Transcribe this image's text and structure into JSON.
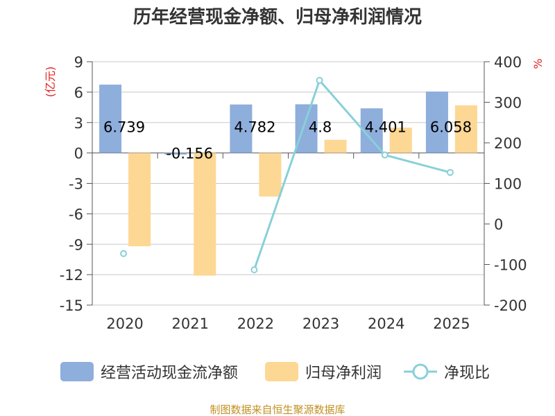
{
  "chart_data": {
    "type": "bar",
    "title": "历年经营现金净额、归母净利润情况",
    "left_unit": "(亿元)",
    "right_unit": "%",
    "categories": [
      "2020",
      "2021",
      "2022",
      "2023",
      "2024",
      "2025"
    ],
    "left_axis": {
      "min": -15,
      "max": 9,
      "ticks": [
        9,
        6,
        3,
        0,
        -3,
        -6,
        -9,
        -12,
        -15
      ]
    },
    "right_axis": {
      "min": -200,
      "max": 400,
      "ticks": [
        400,
        300,
        200,
        100,
        0,
        -100,
        -200
      ]
    },
    "series": [
      {
        "name": "经营活动现金流净额",
        "kind": "bar",
        "axis": "left",
        "color": "#8eaedc",
        "values": [
          6.739,
          -0.156,
          4.782,
          4.8,
          4.401,
          6.058
        ],
        "labels": [
          "6.739",
          "-0.156",
          "4.782",
          "4.8",
          "4.401",
          "6.058"
        ]
      },
      {
        "name": "归母净利润",
        "kind": "bar",
        "axis": "left",
        "color": "#fdd794",
        "values": [
          -9.2,
          -12.1,
          -4.3,
          1.3,
          2.5,
          4.7
        ]
      },
      {
        "name": "净现比",
        "kind": "line",
        "axis": "right",
        "color": "#88d0d8",
        "values": [
          -73,
          null,
          -113,
          354,
          170,
          127
        ]
      }
    ],
    "grid": true,
    "legend_position": "bottom"
  },
  "footer": {
    "source": "制图数据来自恒生聚源数据库"
  }
}
